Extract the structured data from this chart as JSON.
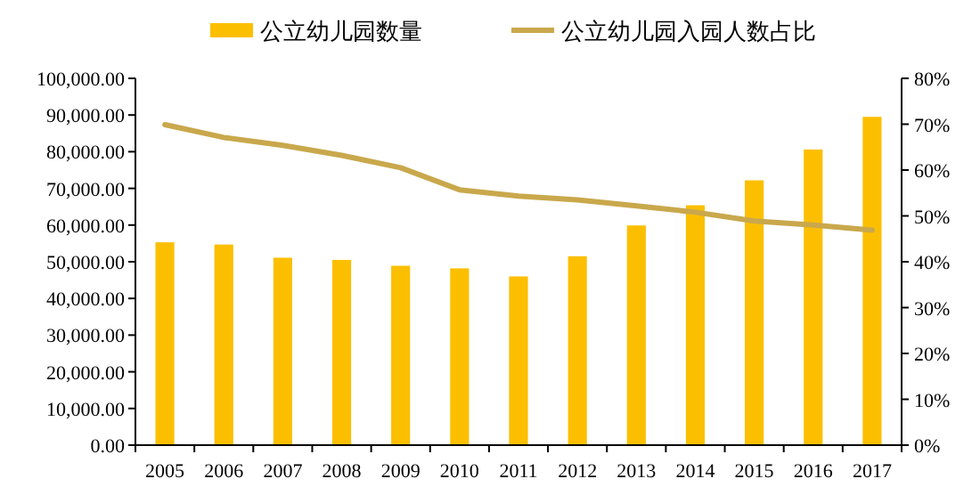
{
  "chart_data": {
    "type": "bar",
    "categories": [
      "2005",
      "2006",
      "2007",
      "2008",
      "2009",
      "2010",
      "2011",
      "2012",
      "2013",
      "2014",
      "2015",
      "2016",
      "2017"
    ],
    "series": [
      {
        "name": "公立幼儿园数量",
        "color": "#fcbf00",
        "values": [
          55300,
          54700,
          51100,
          50500,
          48900,
          48200,
          46000,
          51500,
          59900,
          65400,
          72200,
          80600,
          89500
        ]
      },
      {
        "name": "公立幼儿园入园人数占比",
        "type": "line",
        "axis": "y2",
        "color": "#c9a84c",
        "values": [
          69.9,
          67.1,
          65.4,
          63.2,
          60.5,
          55.7,
          54.3,
          53.5,
          52.2,
          50.8,
          48.9,
          48.0,
          46.9
        ]
      }
    ],
    "ylim": [
      0,
      100000
    ],
    "yticks": [
      {
        "value": 0,
        "label": "0.00"
      },
      {
        "value": 10000,
        "label": "10,000.00"
      },
      {
        "value": 20000,
        "label": "20,000.00"
      },
      {
        "value": 30000,
        "label": "30,000.00"
      },
      {
        "value": 40000,
        "label": "40,000.00"
      },
      {
        "value": 50000,
        "label": "50,000.00"
      },
      {
        "value": 60000,
        "label": "60,000.00"
      },
      {
        "value": 70000,
        "label": "70,000.00"
      },
      {
        "value": 80000,
        "label": "80,000.00"
      },
      {
        "value": 90000,
        "label": "90,000.00"
      },
      {
        "value": 100000,
        "label": "100,000.00"
      }
    ],
    "y2lim": [
      0,
      80
    ],
    "y2ticks": [
      {
        "value": 0,
        "label": "0%"
      },
      {
        "value": 10,
        "label": "10%"
      },
      {
        "value": 20,
        "label": "20%"
      },
      {
        "value": 30,
        "label": "30%"
      },
      {
        "value": 40,
        "label": "40%"
      },
      {
        "value": 50,
        "label": "50%"
      },
      {
        "value": 60,
        "label": "60%"
      },
      {
        "value": 70,
        "label": "70%"
      },
      {
        "value": 80,
        "label": "80%"
      }
    ],
    "legend": "top",
    "grid": false
  }
}
